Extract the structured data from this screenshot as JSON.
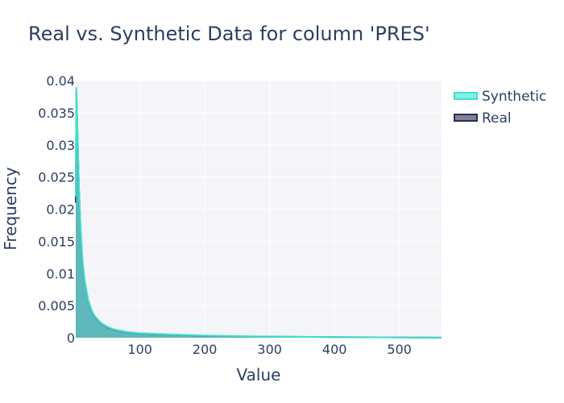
{
  "chart_data": {
    "type": "area",
    "title": "Real vs. Synthetic Data for column 'PRES'",
    "xlabel": "Value",
    "ylabel": "Frequency",
    "xlim": [
      1,
      565
    ],
    "ylim": [
      0,
      0.04
    ],
    "x_ticks": [
      100,
      200,
      300,
      400,
      500
    ],
    "x_tick_labels": [
      "100",
      "200",
      "300",
      "400",
      "500"
    ],
    "y_ticks": [
      0,
      0.005,
      0.01,
      0.015,
      0.02,
      0.025,
      0.03,
      0.035,
      0.04
    ],
    "y_tick_labels": [
      "0",
      "0.005",
      "0.01",
      "0.015",
      "0.02",
      "0.025",
      "0.03",
      "0.035",
      "0.04"
    ],
    "grid": true,
    "legend_position": "top-right",
    "colors": {
      "Synthetic": "#40e0d0",
      "Real": "#2c2c54",
      "plot_bg": "#f4f5f8",
      "text": "#2a3f5f"
    },
    "series": [
      {
        "name": "Synthetic",
        "x": [
          1,
          2,
          4,
          6,
          8,
          10,
          12,
          15,
          20,
          25,
          30,
          40,
          50,
          60,
          80,
          100,
          150,
          200,
          250,
          300,
          400,
          500,
          565
        ],
        "values": [
          0.022,
          0.039,
          0.031,
          0.0235,
          0.0182,
          0.0143,
          0.0115,
          0.0088,
          0.006,
          0.0044,
          0.0034,
          0.0023,
          0.0017,
          0.0013,
          0.0009,
          0.0007,
          0.0005,
          0.00035,
          0.00025,
          0.00018,
          0.0001,
          5e-05,
          3e-05
        ]
      },
      {
        "name": "Real",
        "x": [
          1,
          2,
          4,
          6,
          8,
          10,
          12,
          15,
          20,
          25,
          30,
          40,
          50,
          60,
          80,
          100,
          150,
          200,
          250,
          300,
          400,
          500,
          565
        ],
        "values": [
          0.021,
          0.0385,
          0.0305,
          0.023,
          0.0178,
          0.014,
          0.0112,
          0.0086,
          0.0059,
          0.0043,
          0.0033,
          0.0022,
          0.0016,
          0.0012,
          0.00085,
          0.00065,
          0.00045,
          0.0003,
          0.00022,
          0.00016,
          9e-05,
          4e-05,
          2e-05
        ]
      }
    ]
  }
}
